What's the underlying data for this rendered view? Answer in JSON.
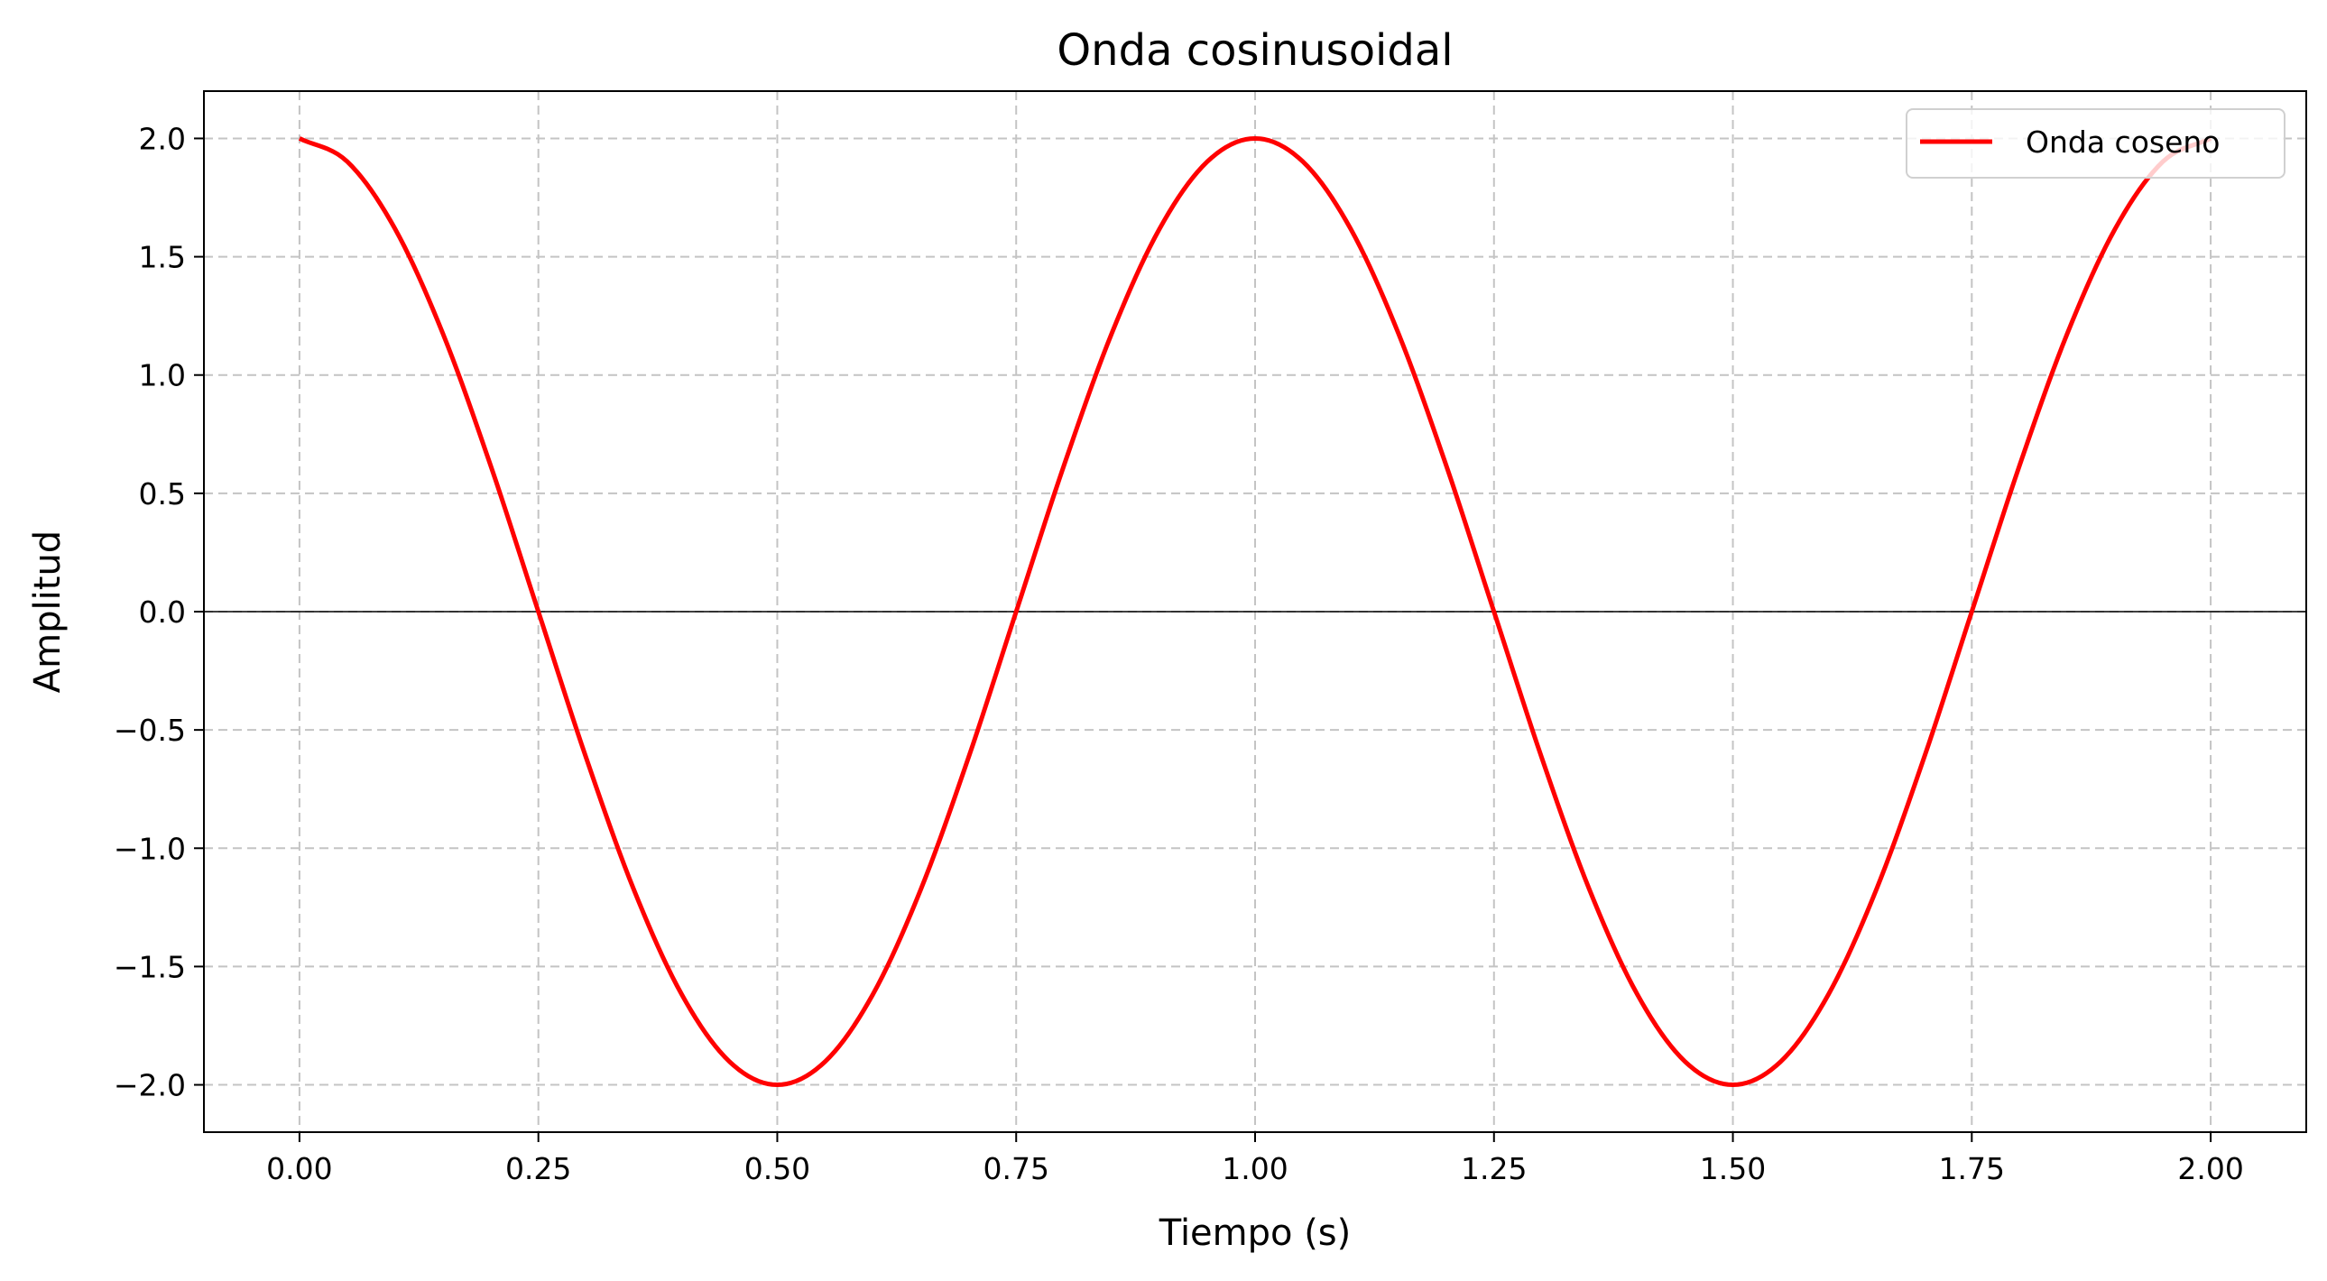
{
  "chart_data": {
    "type": "line",
    "title": "Onda cosinusoidal",
    "xlabel": "Tiempo (s)",
    "ylabel": "Amplitud",
    "xlim": [
      -0.1,
      2.1
    ],
    "ylim": [
      -2.2,
      2.2
    ],
    "xticks": [
      0.0,
      0.25,
      0.5,
      0.75,
      1.0,
      1.25,
      1.5,
      1.75,
      2.0
    ],
    "xtick_labels": [
      "0.00",
      "0.25",
      "0.50",
      "0.75",
      "1.00",
      "1.25",
      "1.50",
      "1.75",
      "2.00"
    ],
    "yticks": [
      -2.0,
      -1.5,
      -1.0,
      -0.5,
      0.0,
      0.5,
      1.0,
      1.5,
      2.0
    ],
    "ytick_labels": [
      "−2.0",
      "−1.5",
      "−1.0",
      "−0.5",
      "0.0",
      "0.5",
      "1.0",
      "1.5",
      "2.0"
    ],
    "grid": true,
    "zero_line": true,
    "legend_position": "top-right",
    "series": [
      {
        "name": "Onda coseno",
        "color": "#ff0000",
        "x": [
          0.0,
          0.05,
          0.1,
          0.15,
          0.2,
          0.25,
          0.3,
          0.35,
          0.4,
          0.45,
          0.5,
          0.55,
          0.6,
          0.65,
          0.7,
          0.75,
          0.8,
          0.85,
          0.9,
          0.95,
          1.0,
          1.05,
          1.1,
          1.15,
          1.2,
          1.25,
          1.3,
          1.35,
          1.4,
          1.45,
          1.5,
          1.55,
          1.6,
          1.65,
          1.7,
          1.75,
          1.8,
          1.85,
          1.9,
          1.95,
          2.0
        ],
        "y": [
          2.0,
          1.902,
          1.618,
          1.176,
          0.618,
          0.0,
          -0.618,
          -1.176,
          -1.618,
          -1.902,
          -2.0,
          -1.902,
          -1.618,
          -1.176,
          -0.618,
          0.0,
          0.618,
          1.176,
          1.618,
          1.902,
          2.0,
          1.902,
          1.618,
          1.176,
          0.618,
          0.0,
          -0.618,
          -1.176,
          -1.618,
          -1.902,
          -2.0,
          -1.902,
          -1.618,
          -1.176,
          -0.618,
          0.0,
          0.618,
          1.176,
          1.618,
          1.902,
          2.0
        ]
      }
    ]
  }
}
